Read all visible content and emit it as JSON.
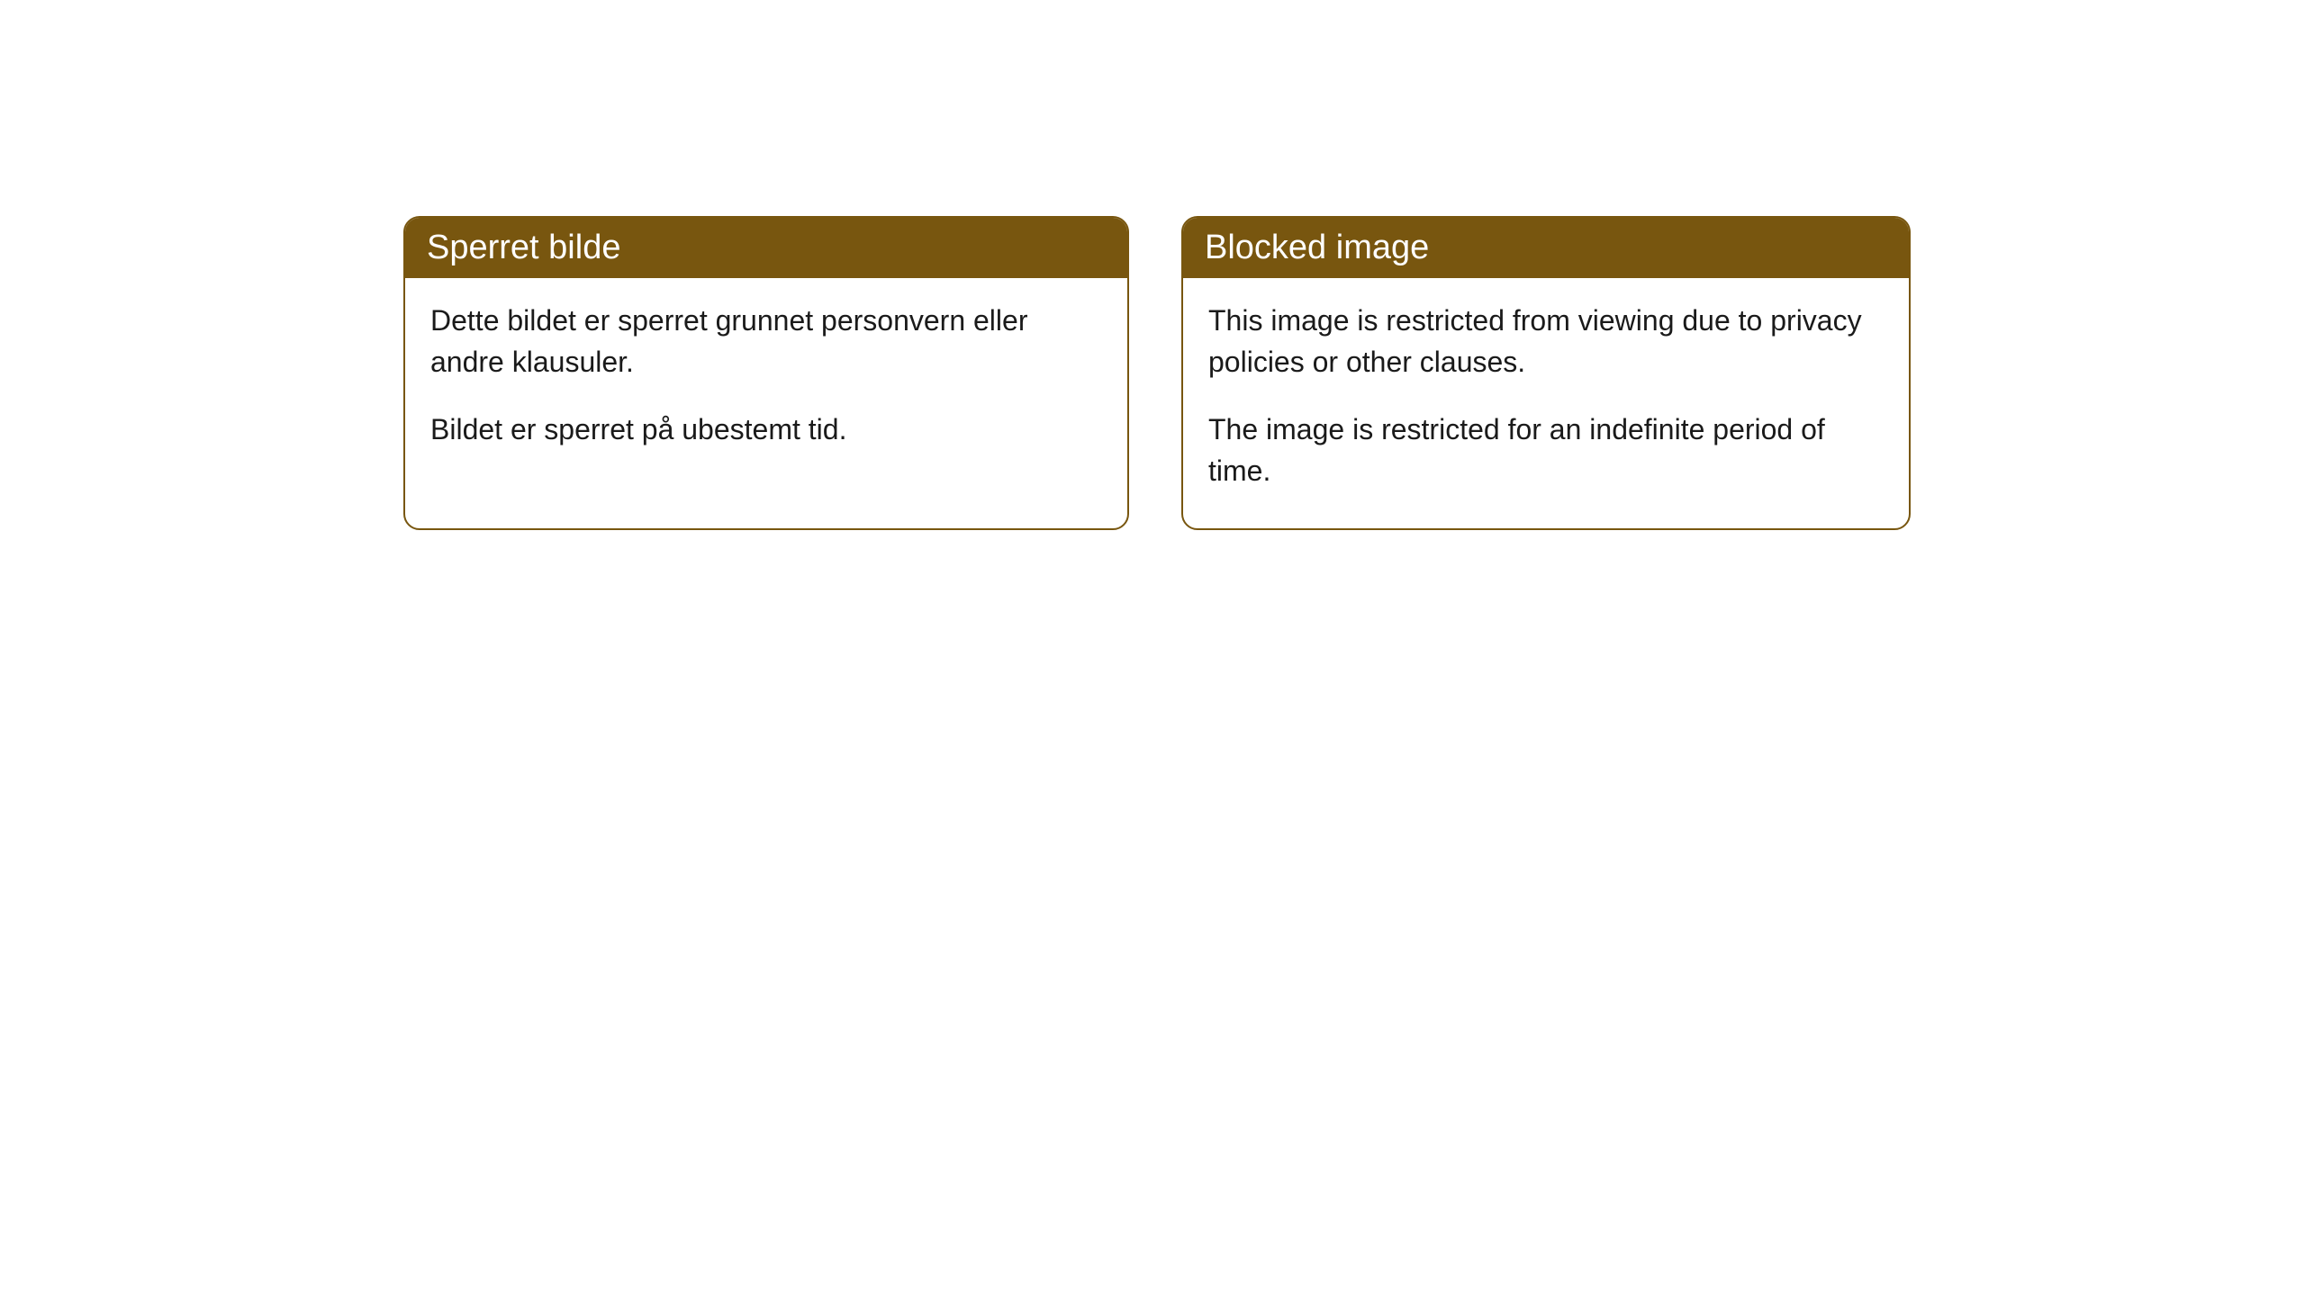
{
  "cards": {
    "left": {
      "title": "Sperret bilde",
      "paragraph1": "Dette bildet er sperret grunnet personvern eller andre klausuler.",
      "paragraph2": "Bildet er sperret på ubestemt tid."
    },
    "right": {
      "title": "Blocked image",
      "paragraph1": "This image is restricted from viewing due to privacy policies or other clauses.",
      "paragraph2": "The image is restricted for an indefinite period of time."
    }
  },
  "styling": {
    "header_bg_color": "#78560f",
    "header_text_color": "#ffffff",
    "border_color": "#78560f",
    "body_bg_color": "#ffffff",
    "body_text_color": "#1a1a1a",
    "border_radius": 18,
    "title_fontsize": 38,
    "body_fontsize": 32
  }
}
